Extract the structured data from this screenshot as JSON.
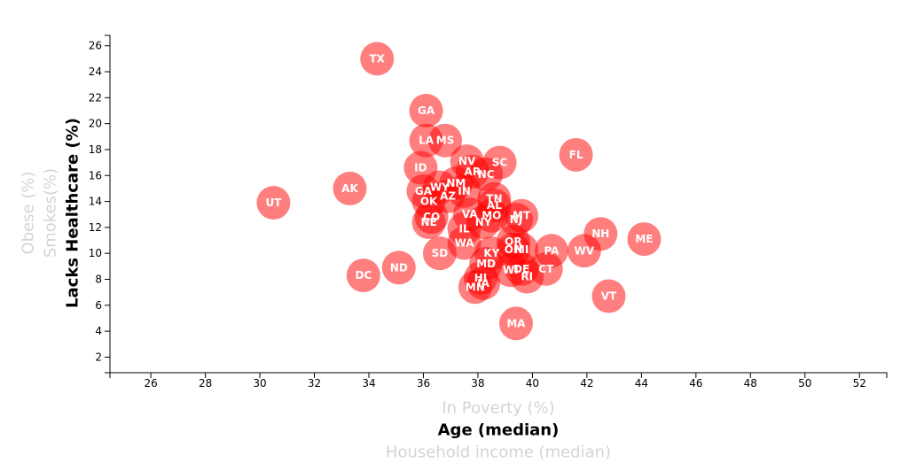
{
  "chart_data": {
    "type": "scatter",
    "x_axis": {
      "active_label": "Age (median)",
      "inactive_labels": [
        "In Poverty (%)",
        "Household income (median)"
      ],
      "range": [
        24.5,
        53
      ],
      "ticks": [
        26,
        28,
        30,
        32,
        34,
        36,
        38,
        40,
        42,
        44,
        46,
        48,
        50,
        52
      ]
    },
    "y_axis": {
      "active_label": "Lacks Healthcare (%)",
      "inactive_labels": [
        "Smokes(%)",
        "Obese (%)"
      ],
      "range": [
        0.8,
        26.8
      ],
      "ticks": [
        2,
        4,
        6,
        8,
        10,
        12,
        14,
        16,
        18,
        20,
        22,
        24,
        26
      ]
    },
    "grid": false,
    "marker_color": "#ff0000",
    "marker_opacity": 0.5,
    "points": [
      {
        "label": "TX",
        "x": 34.3,
        "y": 25.0
      },
      {
        "label": "GA",
        "x": 36.1,
        "y": 21.0
      },
      {
        "label": "MS",
        "x": 36.8,
        "y": 18.7
      },
      {
        "label": "LA",
        "x": 36.1,
        "y": 18.7
      },
      {
        "label": "FL",
        "x": 41.6,
        "y": 17.6
      },
      {
        "label": "NV",
        "x": 37.6,
        "y": 17.1
      },
      {
        "label": "SC",
        "x": 38.8,
        "y": 17.0
      },
      {
        "label": "ID",
        "x": 35.9,
        "y": 16.6
      },
      {
        "label": "AR",
        "x": 37.8,
        "y": 16.3
      },
      {
        "label": "NC",
        "x": 38.3,
        "y": 16.1
      },
      {
        "label": "AK",
        "x": 33.3,
        "y": 15.0
      },
      {
        "label": "NM",
        "x": 37.2,
        "y": 15.4
      },
      {
        "label": "WY",
        "x": 36.6,
        "y": 15.1
      },
      {
        "label": "GA",
        "x": 36.0,
        "y": 14.8
      },
      {
        "label": "IN",
        "x": 37.5,
        "y": 14.8
      },
      {
        "label": "AZ",
        "x": 36.9,
        "y": 14.4
      },
      {
        "label": "OK",
        "x": 36.2,
        "y": 14.0
      },
      {
        "label": "UT",
        "x": 30.5,
        "y": 13.9
      },
      {
        "label": "TN",
        "x": 38.6,
        "y": 14.2
      },
      {
        "label": "AL",
        "x": 38.6,
        "y": 13.7
      },
      {
        "label": "MT",
        "x": 39.6,
        "y": 12.9
      },
      {
        "label": "VA",
        "x": 37.7,
        "y": 13.0
      },
      {
        "label": "MO",
        "x": 38.5,
        "y": 12.9
      },
      {
        "label": "CO",
        "x": 36.3,
        "y": 12.8
      },
      {
        "label": "NJ",
        "x": 39.4,
        "y": 12.6
      },
      {
        "label": "NY",
        "x": 38.2,
        "y": 12.4
      },
      {
        "label": "NE",
        "x": 36.2,
        "y": 12.4
      },
      {
        "label": "IL",
        "x": 37.5,
        "y": 11.9
      },
      {
        "label": "NH",
        "x": 42.5,
        "y": 11.5
      },
      {
        "label": "ME",
        "x": 44.1,
        "y": 11.1
      },
      {
        "label": "WA",
        "x": 37.5,
        "y": 10.8
      },
      {
        "label": "OR",
        "x": 39.3,
        "y": 10.9
      },
      {
        "label": "PA",
        "x": 40.7,
        "y": 10.2
      },
      {
        "label": "WV",
        "x": 41.9,
        "y": 10.2
      },
      {
        "label": "OH",
        "x": 39.3,
        "y": 10.3
      },
      {
        "label": "MI",
        "x": 39.6,
        "y": 10.3
      },
      {
        "label": "SD",
        "x": 36.6,
        "y": 10.0
      },
      {
        "label": "KY",
        "x": 38.5,
        "y": 10.0
      },
      {
        "label": "MD",
        "x": 38.3,
        "y": 9.2
      },
      {
        "label": "ND",
        "x": 35.1,
        "y": 8.9
      },
      {
        "label": "CT",
        "x": 40.5,
        "y": 8.8
      },
      {
        "label": "DE",
        "x": 39.6,
        "y": 8.8
      },
      {
        "label": "WI",
        "x": 39.2,
        "y": 8.7
      },
      {
        "label": "DC",
        "x": 33.8,
        "y": 8.3
      },
      {
        "label": "RI",
        "x": 39.8,
        "y": 8.2
      },
      {
        "label": "HI",
        "x": 38.1,
        "y": 8.1
      },
      {
        "label": "IA",
        "x": 38.2,
        "y": 7.7
      },
      {
        "label": "MN",
        "x": 37.9,
        "y": 7.4
      },
      {
        "label": "VT",
        "x": 42.8,
        "y": 6.7
      },
      {
        "label": "MA",
        "x": 39.4,
        "y": 4.6
      }
    ]
  }
}
